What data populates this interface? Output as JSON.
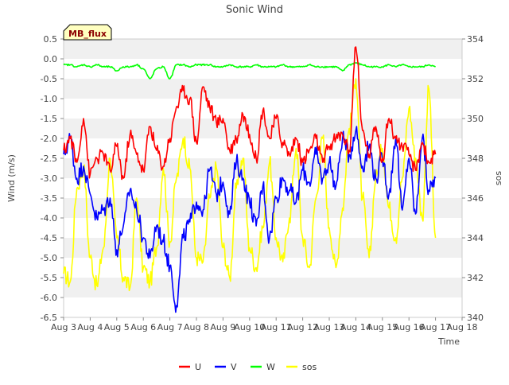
{
  "chart_data": {
    "type": "line",
    "title": "Sonic Wind",
    "xlabel": "Time",
    "ylabel": "Wind (m/s)",
    "ylabel_right": "sos",
    "badge": "MB_flux",
    "x_range": [
      3,
      18
    ],
    "ylim": [
      -6.5,
      0.5
    ],
    "ylim_right": [
      340,
      354
    ],
    "x_ticks": [
      "Aug 3",
      "Aug 4",
      "Aug 5",
      "Aug 6",
      "Aug 7",
      "Aug 8",
      "Aug 9",
      "Aug 10",
      "Aug 11",
      "Aug 12",
      "Aug 13",
      "Aug 14",
      "Aug 15",
      "Aug 16",
      "Aug 17",
      "Aug 18"
    ],
    "y_ticks": [
      "0.5",
      "0.0",
      "-0.5",
      "-1.0",
      "-1.5",
      "-2.0",
      "-2.5",
      "-3.0",
      "-3.5",
      "-4.0",
      "-4.5",
      "-5.0",
      "-5.5",
      "-6.0",
      "-6.5"
    ],
    "y_ticks_right": [
      "354",
      "352",
      "350",
      "348",
      "346",
      "344",
      "342",
      "340"
    ],
    "legend_position": "bottom-center",
    "series": [
      {
        "name": "U",
        "color": "#ff0000",
        "axis": "left",
        "x": [
          3.0,
          3.25,
          3.5,
          3.75,
          4.0,
          4.25,
          4.5,
          4.75,
          5.0,
          5.25,
          5.5,
          5.75,
          6.0,
          6.25,
          6.5,
          6.75,
          7.0,
          7.25,
          7.5,
          7.75,
          8.0,
          8.25,
          8.5,
          8.75,
          9.0,
          9.25,
          9.5,
          9.75,
          10.0,
          10.25,
          10.5,
          10.75,
          11.0,
          11.25,
          11.5,
          11.75,
          12.0,
          12.25,
          12.5,
          12.75,
          13.0,
          13.25,
          13.5,
          13.75,
          14.0,
          14.25,
          14.5,
          14.75,
          15.0,
          15.25,
          15.5,
          15.75,
          16.0,
          16.25,
          16.5,
          16.75,
          17.0
        ],
        "values": [
          -2.3,
          -2.0,
          -2.6,
          -1.5,
          -2.9,
          -2.5,
          -2.4,
          -2.8,
          -2.2,
          -3.0,
          -1.9,
          -2.4,
          -2.8,
          -1.7,
          -2.3,
          -2.7,
          -2.0,
          -1.2,
          -0.8,
          -1.0,
          -2.1,
          -0.7,
          -1.2,
          -1.6,
          -1.5,
          -2.3,
          -2.0,
          -1.4,
          -1.9,
          -2.5,
          -1.3,
          -2.0,
          -1.5,
          -2.1,
          -2.4,
          -2.0,
          -2.6,
          -2.3,
          -2.0,
          -2.6,
          -2.2,
          -2.0,
          -1.9,
          -2.3,
          0.3,
          -1.8,
          -2.4,
          -1.7,
          -2.5,
          -1.5,
          -2.0,
          -2.2,
          -2.4,
          -2.8,
          -2.1,
          -2.6,
          -2.4
        ]
      },
      {
        "name": "V",
        "color": "#0000ff",
        "axis": "left",
        "x": [
          3.0,
          3.25,
          3.5,
          3.75,
          4.0,
          4.25,
          4.5,
          4.75,
          5.0,
          5.25,
          5.5,
          5.75,
          6.0,
          6.25,
          6.5,
          6.75,
          7.0,
          7.25,
          7.5,
          7.75,
          8.0,
          8.25,
          8.5,
          8.75,
          9.0,
          9.25,
          9.5,
          9.75,
          10.0,
          10.25,
          10.5,
          10.75,
          11.0,
          11.25,
          11.5,
          11.75,
          12.0,
          12.25,
          12.5,
          12.75,
          13.0,
          13.25,
          13.5,
          13.75,
          14.0,
          14.25,
          14.5,
          14.75,
          15.0,
          15.25,
          15.5,
          15.75,
          16.0,
          16.25,
          16.5,
          16.75,
          17.0
        ],
        "values": [
          -2.4,
          -2.0,
          -3.0,
          -2.7,
          -3.4,
          -4.0,
          -3.8,
          -3.5,
          -4.8,
          -4.2,
          -3.3,
          -3.8,
          -4.5,
          -5.0,
          -4.2,
          -4.6,
          -5.2,
          -6.2,
          -4.5,
          -4.1,
          -3.6,
          -3.8,
          -2.8,
          -3.4,
          -3.1,
          -3.9,
          -2.6,
          -3.0,
          -3.6,
          -4.2,
          -3.2,
          -4.5,
          -3.5,
          -3.0,
          -3.3,
          -3.6,
          -2.8,
          -3.1,
          -2.4,
          -3.0,
          -2.6,
          -3.2,
          -2.0,
          -2.4,
          -1.8,
          -2.7,
          -2.2,
          -3.0,
          -2.5,
          -3.4,
          -2.0,
          -3.8,
          -2.5,
          -3.9,
          -2.0,
          -3.3,
          -3.0
        ]
      },
      {
        "name": "W",
        "color": "#00ff00",
        "axis": "left",
        "x": [
          3.0,
          3.25,
          3.5,
          3.75,
          4.0,
          4.25,
          4.5,
          4.75,
          5.0,
          5.25,
          5.5,
          5.75,
          6.0,
          6.25,
          6.5,
          6.75,
          7.0,
          7.25,
          7.5,
          7.75,
          8.0,
          8.25,
          8.5,
          8.75,
          9.0,
          9.25,
          9.5,
          9.75,
          10.0,
          10.25,
          10.5,
          10.75,
          11.0,
          11.25,
          11.5,
          11.75,
          12.0,
          12.25,
          12.5,
          12.75,
          13.0,
          13.25,
          13.5,
          13.75,
          14.0,
          14.25,
          14.5,
          14.75,
          15.0,
          15.25,
          15.5,
          15.75,
          16.0,
          16.25,
          16.5,
          16.75,
          17.0
        ],
        "values": [
          -0.15,
          -0.15,
          -0.2,
          -0.15,
          -0.2,
          -0.15,
          -0.2,
          -0.2,
          -0.3,
          -0.2,
          -0.2,
          -0.15,
          -0.25,
          -0.5,
          -0.25,
          -0.2,
          -0.5,
          -0.15,
          -0.15,
          -0.2,
          -0.15,
          -0.15,
          -0.15,
          -0.2,
          -0.2,
          -0.15,
          -0.2,
          -0.2,
          -0.2,
          -0.15,
          -0.2,
          -0.2,
          -0.2,
          -0.15,
          -0.2,
          -0.2,
          -0.2,
          -0.15,
          -0.2,
          -0.2,
          -0.2,
          -0.2,
          -0.3,
          -0.15,
          -0.1,
          -0.15,
          -0.2,
          -0.2,
          -0.2,
          -0.15,
          -0.2,
          -0.15,
          -0.2,
          -0.2,
          -0.2,
          -0.15,
          -0.2
        ]
      },
      {
        "name": "sos",
        "color": "#ffff00",
        "axis": "right",
        "x": [
          3.0,
          3.25,
          3.5,
          3.75,
          4.0,
          4.25,
          4.5,
          4.75,
          5.0,
          5.25,
          5.5,
          5.75,
          6.0,
          6.25,
          6.5,
          6.75,
          7.0,
          7.25,
          7.5,
          7.75,
          8.0,
          8.25,
          8.5,
          8.75,
          9.0,
          9.25,
          9.5,
          9.75,
          10.0,
          10.25,
          10.5,
          10.75,
          11.0,
          11.25,
          11.5,
          11.75,
          12.0,
          12.25,
          12.5,
          12.75,
          13.0,
          13.25,
          13.5,
          13.75,
          14.0,
          14.25,
          14.5,
          14.75,
          15.0,
          15.25,
          15.5,
          15.75,
          16.0,
          16.25,
          16.5,
          16.75,
          17.0
        ],
        "values": [
          342.2,
          341.8,
          346.5,
          347.5,
          343.0,
          341.6,
          343.5,
          348.0,
          344.0,
          342.0,
          341.5,
          346.0,
          342.5,
          341.8,
          343.5,
          347.5,
          343.8,
          347.0,
          349.0,
          347.5,
          343.0,
          342.8,
          346.0,
          347.5,
          343.5,
          342.0,
          346.5,
          348.0,
          343.5,
          342.5,
          344.5,
          347.8,
          344.0,
          342.8,
          345.0,
          348.5,
          344.0,
          342.5,
          346.0,
          349.0,
          344.5,
          342.5,
          345.5,
          349.5,
          352.0,
          346.0,
          343.0,
          347.0,
          348.5,
          345.5,
          344.0,
          347.0,
          350.5,
          348.0,
          345.0,
          351.5,
          344.0
        ]
      }
    ]
  }
}
